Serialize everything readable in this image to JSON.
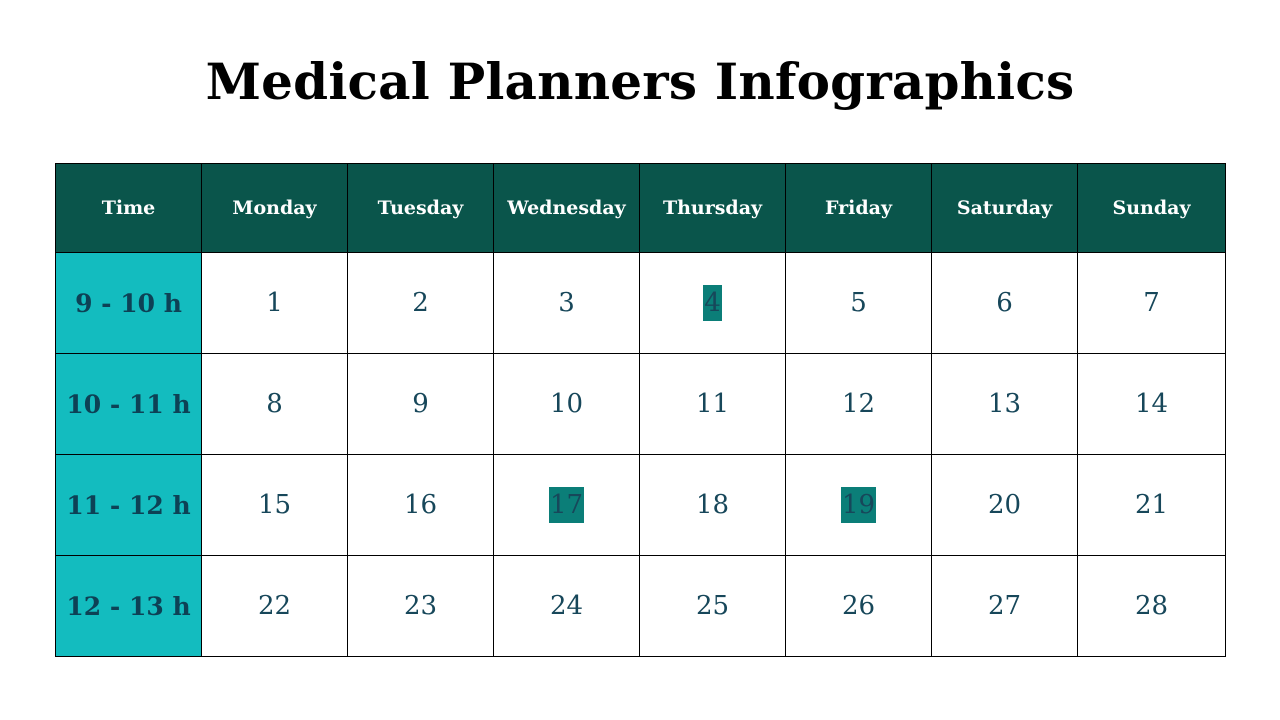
{
  "title": "Medical Planners Infographics",
  "colors": {
    "header_bg": "#0a554b",
    "time_col_bg": "#13bcbf",
    "highlight": "#0b7e78",
    "text": "#17475a"
  },
  "columns": [
    "Time",
    "Monday",
    "Tuesday",
    "Wednesday",
    "Thursday",
    "Friday",
    "Saturday",
    "Sunday"
  ],
  "rows": [
    {
      "time": "9 - 10 h",
      "days": [
        "1",
        "2",
        "3",
        "4",
        "5",
        "6",
        "7"
      ],
      "highlighted": [
        3
      ]
    },
    {
      "time": "10 - 11 h",
      "days": [
        "8",
        "9",
        "10",
        "11",
        "12",
        "13",
        "14"
      ],
      "highlighted": []
    },
    {
      "time": "11 - 12 h",
      "days": [
        "15",
        "16",
        "17",
        "18",
        "19",
        "20",
        "21"
      ],
      "highlighted": [
        2,
        4
      ]
    },
    {
      "time": "12 - 13 h",
      "days": [
        "22",
        "23",
        "24",
        "25",
        "26",
        "27",
        "28"
      ],
      "highlighted": []
    }
  ]
}
